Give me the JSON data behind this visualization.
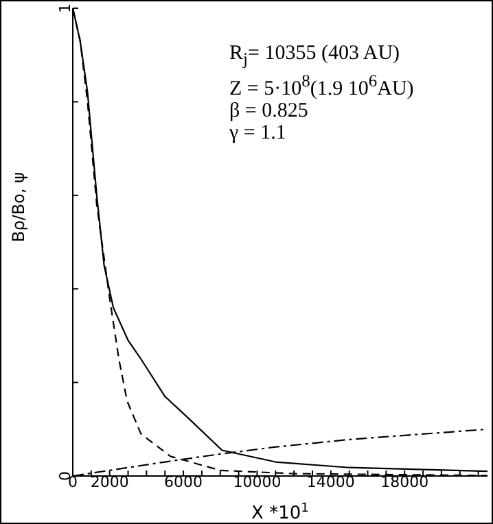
{
  "chart_data": {
    "type": "line",
    "xlabel": "X *10$^{1}$",
    "ylabel": "Bρ/Bo, ψ",
    "annotations": [
      "R$_{j}$= 10355 (403 AU)",
      "Z = 5·10$^{8}$(1.9 10$^{6}$AU)",
      "β = 0.825",
      "γ = 1.1"
    ],
    "xlim": [
      0,
      22500
    ],
    "ylim": [
      0,
      1
    ],
    "xticks": [
      0,
      {
        "value": 1000,
        "label": null
      },
      2000,
      {
        "value": 3000,
        "label": null
      },
      {
        "value": 4000,
        "label": null
      },
      {
        "value": 5000,
        "label": null
      },
      6000,
      {
        "value": 7000,
        "label": null
      },
      {
        "value": 8000,
        "label": null
      },
      {
        "value": 9000,
        "label": null
      },
      10000,
      {
        "value": 11000,
        "label": null
      },
      {
        "value": 12000,
        "label": null
      },
      {
        "value": 13000,
        "label": null
      },
      14000,
      {
        "value": 15000,
        "label": null
      },
      {
        "value": 16000,
        "label": null
      },
      {
        "value": 17000,
        "label": null
      },
      18000,
      {
        "value": 19000,
        "label": null
      },
      {
        "value": 20000,
        "label": null
      },
      {
        "value": 21000,
        "label": null
      },
      {
        "value": 22000,
        "label": null
      }
    ],
    "yticks": [
      0,
      {
        "value": 0.2,
        "label": null
      },
      {
        "value": 0.4,
        "label": null
      },
      {
        "value": 0.6,
        "label": null
      },
      {
        "value": 0.8,
        "label": null
      },
      1
    ],
    "marker": "none",
    "series": [
      {
        "color": "#000000",
        "line_style": "solid",
        "x": [
          0,
          400,
          800,
          1300,
          1700,
          2200,
          3000,
          3700,
          5000,
          6100,
          8100,
          11000,
          15000,
          22500
        ],
        "values": [
          1,
          0.93,
          0.82,
          0.6,
          0.45,
          0.36,
          0.29,
          0.25,
          0.17,
          0.13,
          0.055,
          0.03,
          0.018,
          0.01
        ]
      },
      {
        "color": "#000000",
        "line_style": "dashed",
        "x": [
          0,
          400,
          800,
          1300,
          2000,
          2500,
          2950,
          3700,
          5300,
          8000,
          12000,
          22500
        ],
        "values": [
          1,
          0.93,
          0.8,
          0.58,
          0.38,
          0.25,
          0.16,
          0.09,
          0.042,
          0.012,
          0.005,
          0.001
        ]
      },
      {
        "color": "#000000",
        "line_style": "dashdot",
        "x": [
          0,
          2000,
          5000,
          8000,
          11000,
          15000,
          22500
        ],
        "values": [
          0,
          0.012,
          0.03,
          0.047,
          0.062,
          0.078,
          0.1
        ]
      }
    ]
  }
}
